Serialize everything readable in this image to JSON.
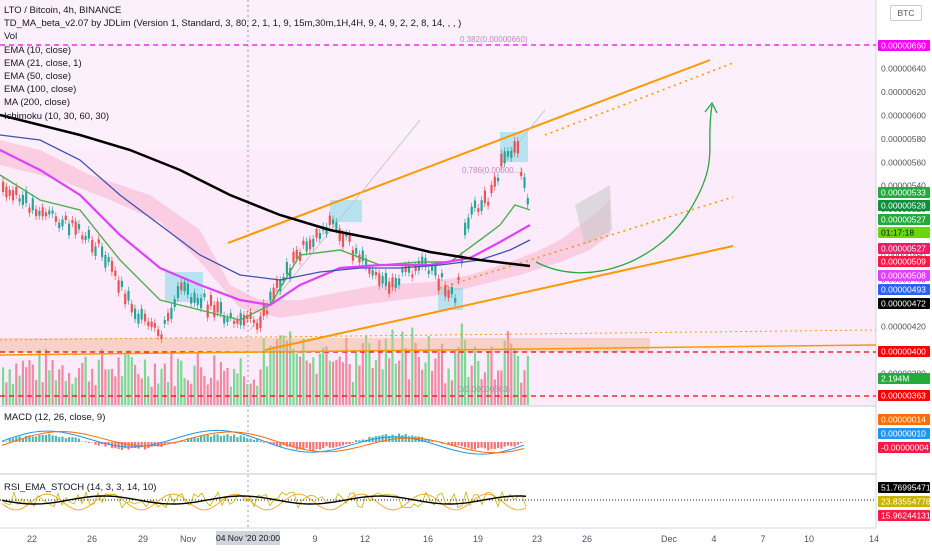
{
  "legend": {
    "symbol": "LTO / Bitcoin, 4h, BINANCE",
    "indicators": [
      "TD_MA_beta_v2.07 by JDLim (Version 1, Standard, 3, 80, 2, 1, 1, 9, 15m,30m,1H,4H, 9, 4, 9, 2, 2, 8, 14, , , )",
      "Vol",
      "EMA (10, close)",
      "EMA (21, close, 1)",
      "EMA (50, close)",
      "EMA (100, close)",
      "MA (200, close)",
      "Ichimoku (10, 30, 60, 30)"
    ]
  },
  "currency_badge": "BTC",
  "price_axis": {
    "ticks": [
      "0.00000660",
      "0.00000640",
      "0.00000620",
      "0.00000600",
      "0.00000580",
      "0.00000560",
      "0.00000540",
      "0.00000520",
      "0.00000500",
      "0.00000480",
      "0.00000460",
      "0.00000440",
      "0.00000420",
      "0.00000400",
      "0.00000380",
      "0.00000360"
    ],
    "labels": [
      {
        "text": "0.00000660",
        "bg": "#ff00ff",
        "fg": "#ffffff"
      },
      {
        "text": "0.00000533",
        "bg": "#22ab39",
        "fg": "#ffffff"
      },
      {
        "text": "0.00000528",
        "bg": "#0e8f3a",
        "fg": "#ffffff"
      },
      {
        "text": "0.00000527",
        "bg": "#22ab39",
        "fg": "#ffffff"
      },
      {
        "text": "01:17:18",
        "bg": "#69d60e",
        "fg": "#131722"
      },
      {
        "text": "0.00000527",
        "bg": "#e91e63",
        "fg": "#ffffff"
      },
      {
        "text": "0.00000509",
        "bg": "#ff1744",
        "fg": "#ffffff"
      },
      {
        "text": "0.00000508",
        "bg": "#e040fb",
        "fg": "#ffffff"
      },
      {
        "text": "0.00000493",
        "bg": "#2962ff",
        "fg": "#ffffff"
      },
      {
        "text": "0.00000472",
        "bg": "#000000",
        "fg": "#ffffff"
      },
      {
        "text": "0.00000400",
        "bg": "#ff0000",
        "fg": "#ffffff"
      },
      {
        "text": "2.194M",
        "bg": "#22ab39",
        "fg": "#ffffff"
      },
      {
        "text": "0.00000363",
        "bg": "#ff0000",
        "fg": "#ffffff"
      }
    ]
  },
  "fib_labels": {
    "top": "0.382(0.00000660)",
    "mid": "0.786(0.00000...)",
    "bottom": "0(0.00000363)"
  },
  "macd": {
    "label": "MACD (12, 26, close, 9)",
    "labels": [
      {
        "text": "0.00000014",
        "bg": "#ff6d00",
        "fg": "#ffffff"
      },
      {
        "text": "0.00000010",
        "bg": "#2196f3",
        "fg": "#ffffff"
      },
      {
        "text": "-0.00000004",
        "bg": "#ff1744",
        "fg": "#ffffff"
      }
    ]
  },
  "rsi": {
    "label": "RSI_EMA_STOCH (14, 3, 3, 14, 10)",
    "labels": [
      {
        "text": "51.76995471",
        "bg": "#000000",
        "fg": "#ffffff"
      },
      {
        "text": "23.83554778",
        "bg": "#c8b400",
        "fg": "#ffffff"
      },
      {
        "text": "15.96244131",
        "bg": "#ff1744",
        "fg": "#ffffff"
      }
    ]
  },
  "time_axis": {
    "ticks": [
      "22",
      "26",
      "29",
      "Nov",
      "9",
      "12",
      "16",
      "19",
      "23",
      "26",
      "Dec",
      "4",
      "7",
      "10",
      "14"
    ],
    "cursor_label": "04 Nov '20   20:00"
  },
  "colors": {
    "ema10": "#4caf50",
    "ema21": "#ff1744",
    "ema50": "#e040fb",
    "ema100": "#3f51b5",
    "ma200": "#000000",
    "channel": "#ff9800",
    "projection": "#22ab39",
    "fib": "#ff00ff",
    "support": "#ff0000"
  }
}
